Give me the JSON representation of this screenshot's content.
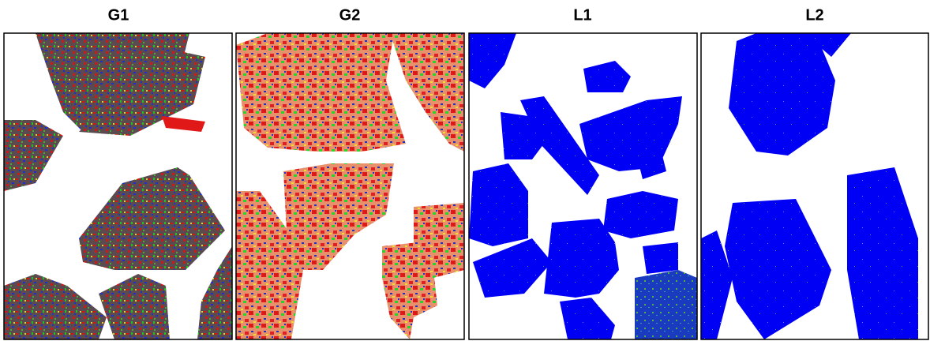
{
  "panels": [
    {
      "title": "G1"
    },
    {
      "title": "G2"
    },
    {
      "title": "L1"
    },
    {
      "title": "L2"
    }
  ]
}
